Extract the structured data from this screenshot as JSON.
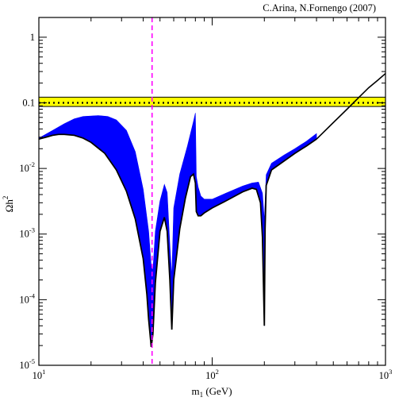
{
  "chart_data": {
    "type": "line",
    "credit": "C.Arina, N.Fornengo  (2007)",
    "xlabel": {
      "main": "m",
      "sub": "1",
      "rest": " (GeV)"
    },
    "ylabel": {
      "main": "Ωh",
      "sup": "2"
    },
    "x_scale": "log",
    "y_scale": "log",
    "xlim": [
      10,
      1000
    ],
    "ylim": [
      1e-05,
      2
    ],
    "grid": false,
    "x_ticks": [
      {
        "value": 10,
        "base": "10",
        "exp": "1"
      },
      {
        "value": 100,
        "base": "10",
        "exp": "2"
      },
      {
        "value": 1000,
        "base": "10",
        "exp": "3"
      }
    ],
    "y_ticks": [
      {
        "value": 1e-05,
        "base": "10",
        "exp": "-5"
      },
      {
        "value": 0.0001,
        "base": "10",
        "exp": "-4"
      },
      {
        "value": 0.001,
        "base": "10",
        "exp": "-3"
      },
      {
        "value": 0.01,
        "base": "10",
        "exp": "-2"
      },
      {
        "value": 0.1,
        "text": "0.1"
      },
      {
        "value": 1,
        "text": "1"
      }
    ],
    "wmap_band": {
      "ymin": 0.088,
      "ymax": 0.122,
      "color": "#ffff00"
    },
    "dotted_line": {
      "y": 0.1,
      "color": "#000000"
    },
    "vertical_line": {
      "x": 45,
      "color": "#ff00ff"
    },
    "series": [
      {
        "kind": "band",
        "color": "#0000ff",
        "upper": [
          [
            10,
            0.029
          ],
          [
            12,
            0.038
          ],
          [
            14,
            0.048
          ],
          [
            16,
            0.057
          ],
          [
            18,
            0.062
          ],
          [
            22,
            0.064
          ],
          [
            25,
            0.062
          ],
          [
            28,
            0.055
          ],
          [
            32,
            0.038
          ],
          [
            36,
            0.018
          ],
          [
            40,
            0.0048
          ],
          [
            43,
            0.0011
          ],
          [
            44.5,
            0.00032
          ],
          [
            45.5,
            0.00028
          ],
          [
            47,
            0.0011
          ],
          [
            50,
            0.0032
          ],
          [
            53,
            0.0057
          ],
          [
            55,
            0.0043
          ],
          [
            57,
            0.00068
          ],
          [
            58.5,
            0.00022
          ],
          [
            60,
            0.0025
          ],
          [
            65,
            0.0082
          ],
          [
            72,
            0.022
          ],
          [
            78,
            0.052
          ],
          [
            80,
            0.07
          ],
          [
            81,
            0.0075
          ],
          [
            83,
            0.0052
          ],
          [
            86,
            0.0038
          ],
          [
            90,
            0.0034
          ],
          [
            100,
            0.0034
          ],
          [
            120,
            0.0042
          ],
          [
            150,
            0.0054
          ],
          [
            170,
            0.006
          ],
          [
            185,
            0.0062
          ],
          [
            195,
            0.0042
          ],
          [
            200,
            0.0016
          ],
          [
            205,
            0.008
          ],
          [
            220,
            0.012
          ],
          [
            260,
            0.016
          ],
          [
            300,
            0.02
          ],
          [
            350,
            0.026
          ],
          [
            400,
            0.034
          ]
        ],
        "lower": [
          [
            10,
            0.028
          ],
          [
            11,
            0.03
          ],
          [
            12,
            0.032
          ],
          [
            13,
            0.033
          ],
          [
            14,
            0.033
          ],
          [
            16,
            0.032
          ],
          [
            18,
            0.029
          ],
          [
            20,
            0.025
          ],
          [
            24,
            0.017
          ],
          [
            28,
            0.0095
          ],
          [
            32,
            0.0045
          ],
          [
            36,
            0.0017
          ],
          [
            40,
            0.00042
          ],
          [
            42,
            0.00012
          ],
          [
            43,
            5e-05
          ],
          [
            44.5,
            1.9e-05
          ],
          [
            45.5,
            3e-05
          ],
          [
            47,
            0.00018
          ],
          [
            50,
            0.0011
          ],
          [
            53,
            0.0018
          ],
          [
            55,
            0.0011
          ],
          [
            57,
            0.0002
          ],
          [
            58.5,
            3.5e-05
          ],
          [
            60,
            0.0002
          ],
          [
            65,
            0.0012
          ],
          [
            70,
            0.0035
          ],
          [
            75,
            0.0075
          ],
          [
            78,
            0.0082
          ],
          [
            80,
            0.006
          ],
          [
            81,
            0.0022
          ],
          [
            83,
            0.0019
          ],
          [
            86,
            0.0019
          ],
          [
            90,
            0.0021
          ],
          [
            100,
            0.0025
          ],
          [
            120,
            0.0032
          ],
          [
            150,
            0.0044
          ],
          [
            170,
            0.005
          ],
          [
            180,
            0.0048
          ],
          [
            190,
            0.003
          ],
          [
            195,
            0.0009
          ],
          [
            200,
            4e-05
          ],
          [
            202,
            0.0012
          ],
          [
            205,
            0.0055
          ],
          [
            220,
            0.0095
          ],
          [
            260,
            0.013
          ],
          [
            300,
            0.017
          ],
          [
            350,
            0.022
          ],
          [
            400,
            0.028
          ]
        ]
      },
      {
        "kind": "line",
        "color": "#000000",
        "points": [
          [
            400,
            0.028
          ],
          [
            500,
            0.05
          ],
          [
            600,
            0.08
          ],
          [
            700,
            0.12
          ],
          [
            800,
            0.17
          ],
          [
            900,
            0.22
          ],
          [
            1000,
            0.28
          ]
        ]
      }
    ]
  }
}
